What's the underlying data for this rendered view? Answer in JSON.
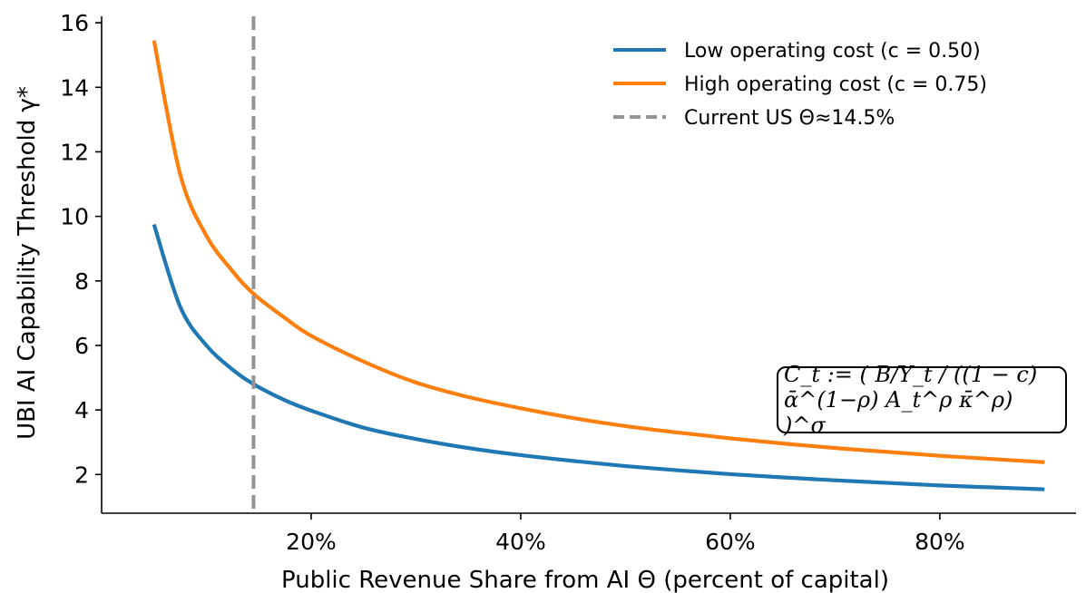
{
  "chart_data": {
    "type": "line",
    "xlabel": "Public Revenue Share from AI Θ (percent of capital)",
    "ylabel": "UBI AI Capability Threshold γ*",
    "xlim": [
      0.0,
      0.93
    ],
    "ylim": [
      0.8,
      16.2
    ],
    "xticks": [
      0.2,
      0.4,
      0.6,
      0.8
    ],
    "xtick_labels": [
      "20%",
      "40%",
      "60%",
      "80%"
    ],
    "yticks": [
      2,
      4,
      6,
      8,
      10,
      12,
      14,
      16
    ],
    "ytick_labels": [
      "2",
      "4",
      "6",
      "8",
      "10",
      "12",
      "14",
      "16"
    ],
    "grid": false,
    "legend_placement": "top-right",
    "series": [
      {
        "name": "Low operating cost  (c = 0.50)",
        "color": "#1f77b4",
        "x": [
          0.05,
          0.075,
          0.1,
          0.125,
          0.145,
          0.175,
          0.2,
          0.25,
          0.3,
          0.35,
          0.4,
          0.45,
          0.5,
          0.55,
          0.6,
          0.65,
          0.7,
          0.75,
          0.8,
          0.85,
          0.9
        ],
        "y": [
          9.75,
          7.2,
          6.0,
          5.25,
          4.8,
          4.3,
          3.98,
          3.45,
          3.1,
          2.82,
          2.6,
          2.42,
          2.26,
          2.13,
          2.01,
          1.91,
          1.82,
          1.74,
          1.66,
          1.6,
          1.54
        ]
      },
      {
        "name": "High operating cost (c = 0.75)",
        "color": "#ff7f0e",
        "x": [
          0.05,
          0.075,
          0.1,
          0.125,
          0.145,
          0.175,
          0.2,
          0.25,
          0.3,
          0.35,
          0.4,
          0.45,
          0.5,
          0.55,
          0.6,
          0.65,
          0.7,
          0.75,
          0.8,
          0.85,
          0.9
        ],
        "y": [
          15.45,
          11.3,
          9.4,
          8.3,
          7.6,
          6.85,
          6.3,
          5.5,
          4.85,
          4.4,
          4.05,
          3.75,
          3.5,
          3.3,
          3.12,
          2.96,
          2.82,
          2.7,
          2.58,
          2.48,
          2.38
        ]
      }
    ],
    "reference_line": {
      "name": "Current US Θ≈14.5%",
      "x": 0.145,
      "color": "#949494",
      "style": "dashed"
    },
    "annotation": "C_t := ( B/Y_t / ((1 − c) ᾱ^(1−ρ) A_t^ρ κ̄^ρ) )^σ"
  }
}
